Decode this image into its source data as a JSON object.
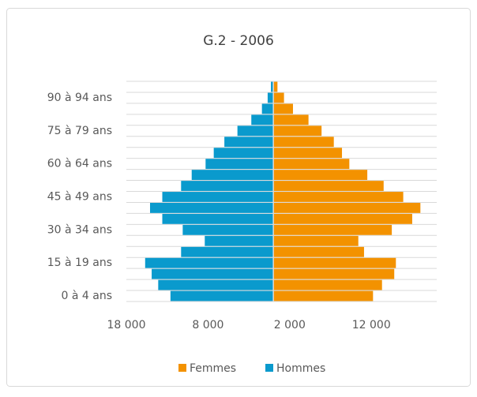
{
  "chart_data": {
    "type": "pyramid",
    "title": "G.2 - 2006",
    "categories": [
      "0 à 4 ans",
      null,
      null,
      "15 à 19 ans",
      null,
      null,
      "30 à 34 ans",
      null,
      null,
      "45 à 49 ans",
      null,
      null,
      "60 à 64 ans",
      null,
      null,
      "75 à 79 ans",
      null,
      null,
      "90 à 94 ans",
      null
    ],
    "series": [
      {
        "name": "Femmes",
        "color": "#f39200",
        "values": [
          12200,
          13300,
          14800,
          15000,
          11100,
          10400,
          14500,
          17000,
          18000,
          15900,
          13500,
          11500,
          9300,
          8400,
          7400,
          5900,
          4300,
          2400,
          1300,
          500
        ]
      },
      {
        "name": "Hommes",
        "color": "#0a9acd",
        "values": [
          -12600,
          -14100,
          -14900,
          -15700,
          -11300,
          -8400,
          -11100,
          -13600,
          -15100,
          -13600,
          -11300,
          -10000,
          -8300,
          -7300,
          -6000,
          -4400,
          -2700,
          -1400,
          -700,
          -300
        ]
      }
    ],
    "xlim": [
      -18000,
      20000
    ],
    "xticks": [
      {
        "value": -18000,
        "label": "18 000"
      },
      {
        "value": -8000,
        "label": "8 000"
      },
      {
        "value": 2000,
        "label": "2 000"
      },
      {
        "value": 12000,
        "label": "12 000"
      }
    ],
    "legend": "bottom"
  }
}
